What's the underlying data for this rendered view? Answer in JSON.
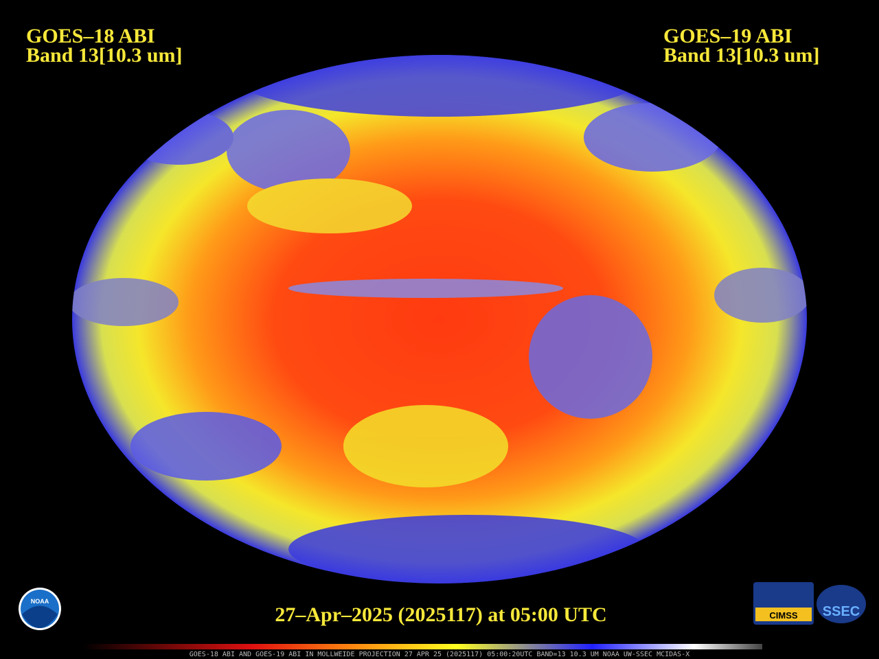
{
  "header": {
    "left": {
      "satellite": "GOES–18 ABI",
      "band": "Band 13[10.3 um]"
    },
    "right": {
      "satellite": "GOES–19 ABI",
      "band": "Band 13[10.3 um]"
    }
  },
  "timestamp": "27–Apr–2025 (2025117) at 05:00 UTC",
  "footer": "GOES-18 ABI AND GOES-19 ABI IN MOLLWEIDE PROJECTION 27 APR 25 (2025117) 05:00:20UTC BAND=13 10.3 UM NOAA UW-SSEC MCIDAS-X",
  "logos": {
    "noaa": "NOAA",
    "cimss": "CIMSS",
    "ssec": "SSEC"
  }
}
